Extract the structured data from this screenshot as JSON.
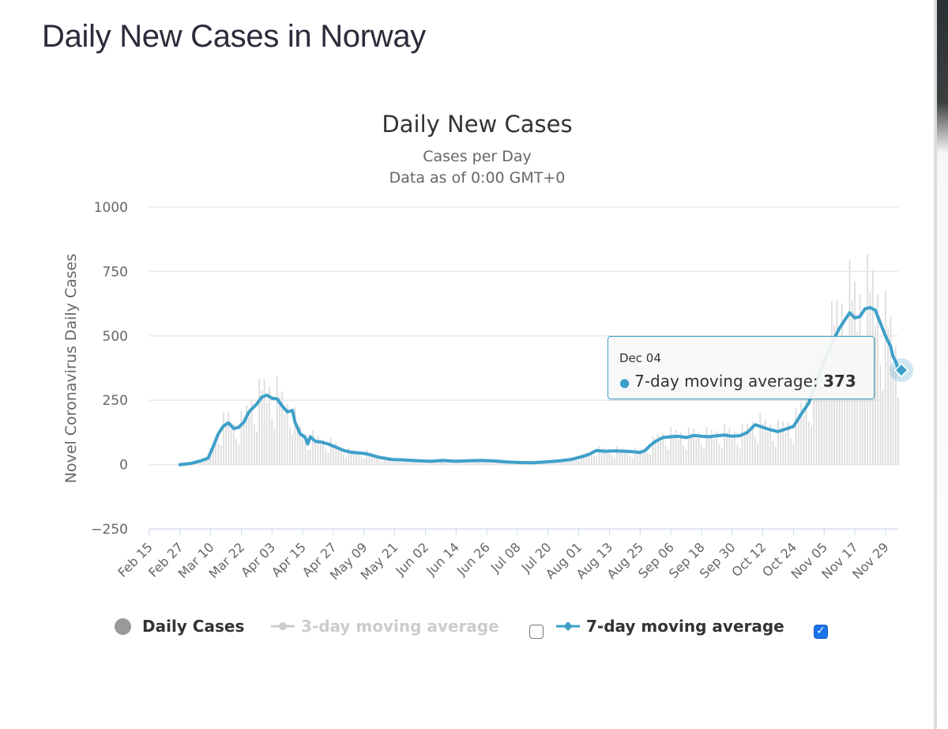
{
  "page": {
    "title": "Daily New Cases in Norway"
  },
  "chart": {
    "title": "Daily New Cases",
    "subtitle_line1": "Cases per Day",
    "subtitle_line2": "Data as of 0:00 GMT+0"
  },
  "legend": {
    "daily": "Daily Cases",
    "ma3": "3-day moving average",
    "ma7": "7-day moving average",
    "ma3_checked": false,
    "ma7_checked": true
  },
  "tooltip": {
    "date": "Dec 04",
    "series": "7-day moving average",
    "value": "373"
  },
  "colors": {
    "line": "#3ea0c9",
    "bars": "#dddddd",
    "grid": "#e6e6e6",
    "axis": "#ccd6eb"
  },
  "chart_data": {
    "type": "line",
    "title": "Daily New Cases",
    "subtitle": "Cases per Day · Data as of 0:00 GMT+0",
    "ylabel": "Novel Coronavirus Daily Cases",
    "xlabel": "",
    "ylim": [
      -250,
      1000
    ],
    "yticks": [
      -250,
      0,
      250,
      500,
      750,
      1000
    ],
    "x_start": "Feb 15",
    "x_end": "Dec 04",
    "x_ticks": [
      "Feb 15",
      "Feb 27",
      "Mar 10",
      "Mar 22",
      "Apr 03",
      "Apr 15",
      "Apr 27",
      "May 09",
      "May 21",
      "Jun 02",
      "Jun 14",
      "Jun 26",
      "Jul 08",
      "Jul 20",
      "Aug 01",
      "Aug 13",
      "Aug 25",
      "Sep 06",
      "Sep 18",
      "Sep 30",
      "Oct 12",
      "Oct 24",
      "Nov 05",
      "Nov 17",
      "Nov 29"
    ],
    "grid": true,
    "legend_position": "bottom",
    "series": [
      {
        "name": "7-day moving average",
        "points": [
          [
            "Feb 27",
            0
          ],
          [
            "Mar 02",
            4
          ],
          [
            "Mar 06",
            14
          ],
          [
            "Mar 09",
            25
          ],
          [
            "Mar 11",
            70
          ],
          [
            "Mar 13",
            120
          ],
          [
            "Mar 15",
            150
          ],
          [
            "Mar 17",
            162
          ],
          [
            "Mar 19",
            140
          ],
          [
            "Mar 21",
            145
          ],
          [
            "Mar 23",
            165
          ],
          [
            "Mar 25",
            205
          ],
          [
            "Mar 28",
            235
          ],
          [
            "Mar 30",
            262
          ],
          [
            "Apr 01",
            270
          ],
          [
            "Apr 03",
            258
          ],
          [
            "Apr 05",
            255
          ],
          [
            "Apr 07",
            228
          ],
          [
            "Apr 09",
            205
          ],
          [
            "Apr 11",
            210
          ],
          [
            "Apr 12",
            165
          ],
          [
            "Apr 14",
            120
          ],
          [
            "Apr 16",
            105
          ],
          [
            "Apr 17",
            80
          ],
          [
            "Apr 18",
            108
          ],
          [
            "Apr 20",
            90
          ],
          [
            "Apr 22",
            88
          ],
          [
            "Apr 25",
            80
          ],
          [
            "Apr 28",
            68
          ],
          [
            "May 01",
            55
          ],
          [
            "May 04",
            48
          ],
          [
            "May 07",
            45
          ],
          [
            "May 10",
            42
          ],
          [
            "May 15",
            28
          ],
          [
            "May 20",
            20
          ],
          [
            "May 25",
            18
          ],
          [
            "May 30",
            15
          ],
          [
            "Jun 04",
            13
          ],
          [
            "Jun 09",
            16
          ],
          [
            "Jun 14",
            13
          ],
          [
            "Jun 19",
            15
          ],
          [
            "Jun 24",
            16
          ],
          [
            "Jun 29",
            14
          ],
          [
            "Jul 04",
            10
          ],
          [
            "Jul 09",
            8
          ],
          [
            "Jul 14",
            7
          ],
          [
            "Jul 19",
            10
          ],
          [
            "Jul 24",
            14
          ],
          [
            "Jul 29",
            20
          ],
          [
            "Aug 02",
            30
          ],
          [
            "Aug 05",
            40
          ],
          [
            "Aug 08",
            55
          ],
          [
            "Aug 11",
            52
          ],
          [
            "Aug 15",
            53
          ],
          [
            "Aug 19",
            52
          ],
          [
            "Aug 22",
            50
          ],
          [
            "Aug 25",
            47
          ],
          [
            "Aug 27",
            55
          ],
          [
            "Aug 29",
            75
          ],
          [
            "Aug 31",
            90
          ],
          [
            "Sep 03",
            105
          ],
          [
            "Sep 06",
            108
          ],
          [
            "Sep 09",
            110
          ],
          [
            "Sep 12",
            105
          ],
          [
            "Sep 15",
            113
          ],
          [
            "Sep 18",
            110
          ],
          [
            "Sep 21",
            108
          ],
          [
            "Sep 24",
            112
          ],
          [
            "Sep 27",
            115
          ],
          [
            "Sep 30",
            110
          ],
          [
            "Oct 03",
            112
          ],
          [
            "Oct 06",
            125
          ],
          [
            "Oct 09",
            155
          ],
          [
            "Oct 12",
            145
          ],
          [
            "Oct 15",
            135
          ],
          [
            "Oct 18",
            128
          ],
          [
            "Oct 21",
            138
          ],
          [
            "Oct 24",
            148
          ],
          [
            "Oct 27",
            195
          ],
          [
            "Oct 30",
            240
          ],
          [
            "Nov 02",
            320
          ],
          [
            "Nov 05",
            400
          ],
          [
            "Nov 08",
            470
          ],
          [
            "Nov 11",
            530
          ],
          [
            "Nov 13",
            560
          ],
          [
            "Nov 15",
            590
          ],
          [
            "Nov 17",
            570
          ],
          [
            "Nov 19",
            575
          ],
          [
            "Nov 21",
            605
          ],
          [
            "Nov 23",
            610
          ],
          [
            "Nov 25",
            600
          ],
          [
            "Nov 27",
            550
          ],
          [
            "Nov 29",
            500
          ],
          [
            "Dec 01",
            460
          ],
          [
            "Dec 02",
            420
          ],
          [
            "Dec 03",
            400
          ],
          [
            "Dec 04",
            373
          ]
        ]
      }
    ]
  }
}
